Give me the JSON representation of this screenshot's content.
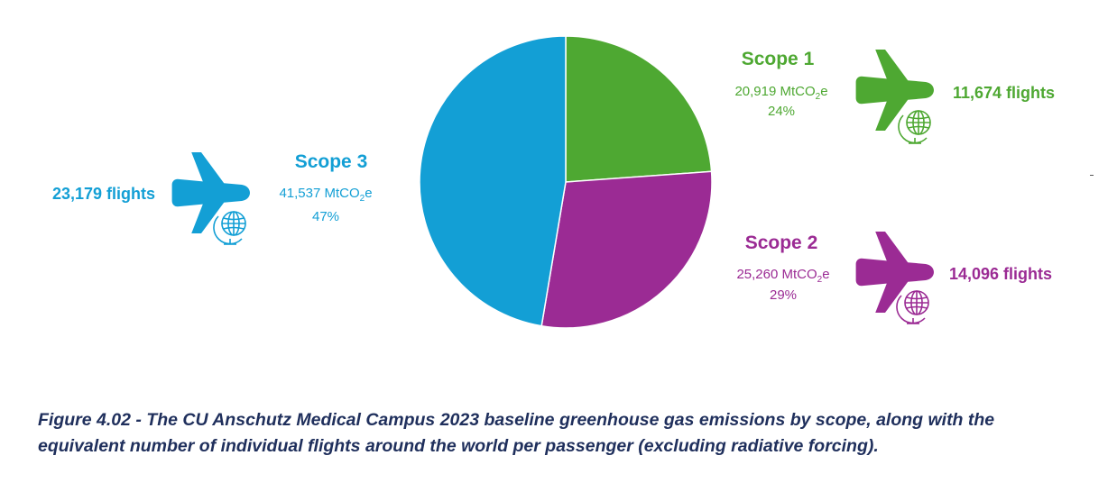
{
  "chart_data": {
    "type": "pie",
    "title": "",
    "series": [
      {
        "name": "Scope 1",
        "value": 20919,
        "value_label": "20,919 MtCO",
        "subscript": "2",
        "unit_suffix": "e",
        "percent": 24,
        "percent_label": "24%",
        "flights": 11674,
        "flights_label": "11,674 flights",
        "color": "#4ea832"
      },
      {
        "name": "Scope 2",
        "value": 25260,
        "value_label": "25,260 MtCO",
        "subscript": "2",
        "unit_suffix": "e",
        "percent": 29,
        "percent_label": "29%",
        "flights": 14096,
        "flights_label": "14,096 flights",
        "color": "#9b2b94"
      },
      {
        "name": "Scope 3",
        "value": 41537,
        "value_label": "41,537 MtCO",
        "subscript": "2",
        "unit_suffix": "e",
        "percent": 47,
        "percent_label": "47%",
        "flights": 23179,
        "flights_label": "23,179 flights",
        "color": "#139fd5"
      }
    ],
    "icons": [
      "airplane-icon",
      "globe-icon"
    ]
  },
  "caption": "Figure 4.02 - The CU Anschutz Medical Campus 2023 baseline greenhouse gas emissions by scope, along with the equivalent number of individual flights around the world per passenger (excluding radiative forcing).",
  "caption_color": "#1f2f5c"
}
